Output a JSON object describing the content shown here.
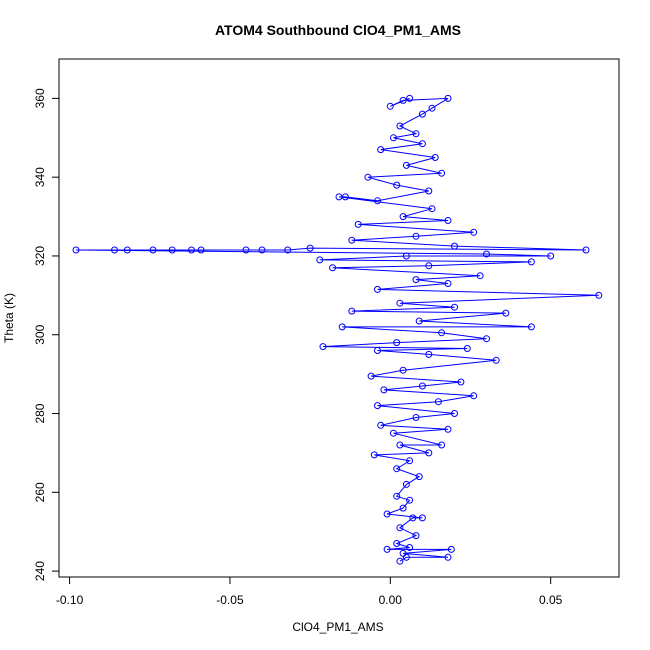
{
  "chart_data": {
    "type": "scatter",
    "title": "ATOM4 Southbound ClO4_PM1_AMS",
    "xlabel": "ClO4_PM1_AMS",
    "ylabel": "Theta (K)",
    "xlim": [
      -0.1033,
      0.0713
    ],
    "ylim": [
      238.5,
      370
    ],
    "x_ticks": [
      -0.1,
      -0.05,
      0.0,
      0.05
    ],
    "x_tick_labels": [
      "-0.10",
      "-0.05",
      "0.00",
      "0.05"
    ],
    "y_ticks": [
      240,
      260,
      280,
      300,
      320,
      340,
      360
    ],
    "y_tick_labels": [
      "240",
      "260",
      "280",
      "300",
      "320",
      "340",
      "360"
    ],
    "grid": false,
    "marker": "open-circle",
    "connected": true,
    "color": "#0000ff",
    "series": [
      {
        "name": "ClO4_PM1_AMS",
        "points": [
          [
            0.003,
            242.5
          ],
          [
            0.005,
            243.5
          ],
          [
            0.018,
            243.5
          ],
          [
            0.004,
            244.5
          ],
          [
            0.019,
            245.5
          ],
          [
            -0.001,
            245.5
          ],
          [
            0.006,
            246
          ],
          [
            0.002,
            247
          ],
          [
            0.008,
            249
          ],
          [
            0.003,
            251
          ],
          [
            0.007,
            253.5
          ],
          [
            0.01,
            253.5
          ],
          [
            -0.001,
            254.5
          ],
          [
            0.004,
            256
          ],
          [
            0.006,
            258
          ],
          [
            0.002,
            259
          ],
          [
            0.005,
            262
          ],
          [
            0.009,
            264
          ],
          [
            0.002,
            266
          ],
          [
            0.006,
            268
          ],
          [
            -0.005,
            269.5
          ],
          [
            0.012,
            270
          ],
          [
            0.003,
            272
          ],
          [
            0.016,
            272
          ],
          [
            0.001,
            275
          ],
          [
            0.018,
            276
          ],
          [
            -0.003,
            277
          ],
          [
            0.008,
            279
          ],
          [
            0.02,
            280
          ],
          [
            -0.004,
            282
          ],
          [
            0.015,
            283
          ],
          [
            0.026,
            284.5
          ],
          [
            -0.002,
            286
          ],
          [
            0.01,
            287
          ],
          [
            0.022,
            288
          ],
          [
            -0.006,
            289.5
          ],
          [
            0.004,
            291
          ],
          [
            0.033,
            293.5
          ],
          [
            0.012,
            295
          ],
          [
            -0.004,
            296
          ],
          [
            0.024,
            296.5
          ],
          [
            -0.021,
            297
          ],
          [
            0.002,
            298
          ],
          [
            0.03,
            299
          ],
          [
            0.016,
            300.5
          ],
          [
            -0.015,
            302
          ],
          [
            0.044,
            302
          ],
          [
            0.009,
            303.5
          ],
          [
            0.036,
            305.5
          ],
          [
            -0.012,
            306
          ],
          [
            0.02,
            307
          ],
          [
            0.003,
            308
          ],
          [
            0.065,
            310
          ],
          [
            -0.004,
            311.5
          ],
          [
            0.018,
            313
          ],
          [
            0.008,
            314
          ],
          [
            0.028,
            315
          ],
          [
            -0.018,
            317
          ],
          [
            0.012,
            317.5
          ],
          [
            0.044,
            318.5
          ],
          [
            -0.022,
            319
          ],
          [
            0.005,
            320
          ],
          [
            0.05,
            320
          ],
          [
            0.03,
            320.5
          ],
          [
            -0.098,
            321.5
          ],
          [
            -0.086,
            321.5
          ],
          [
            -0.082,
            321.5
          ],
          [
            -0.074,
            321.5
          ],
          [
            -0.068,
            321.5
          ],
          [
            -0.062,
            321.5
          ],
          [
            -0.059,
            321.5
          ],
          [
            -0.045,
            321.5
          ],
          [
            -0.04,
            321.5
          ],
          [
            -0.032,
            321.5
          ],
          [
            -0.025,
            322
          ],
          [
            0.061,
            321.5
          ],
          [
            0.02,
            322.5
          ],
          [
            -0.012,
            324
          ],
          [
            0.008,
            325
          ],
          [
            0.026,
            326
          ],
          [
            -0.01,
            328
          ],
          [
            0.018,
            329
          ],
          [
            0.004,
            330
          ],
          [
            0.013,
            332
          ],
          [
            -0.016,
            335
          ],
          [
            -0.014,
            335
          ],
          [
            -0.004,
            334
          ],
          [
            0.012,
            336.5
          ],
          [
            0.002,
            338
          ],
          [
            -0.007,
            340
          ],
          [
            0.016,
            341
          ],
          [
            0.005,
            343
          ],
          [
            0.014,
            345
          ],
          [
            -0.003,
            347
          ],
          [
            0.01,
            348.5
          ],
          [
            0.001,
            350
          ],
          [
            0.008,
            351
          ],
          [
            0.003,
            353
          ],
          [
            0.01,
            356
          ],
          [
            0.013,
            357.5
          ],
          [
            0.018,
            360
          ],
          [
            0.004,
            359.5
          ],
          [
            0.0,
            358
          ],
          [
            0.006,
            360
          ]
        ]
      }
    ]
  }
}
